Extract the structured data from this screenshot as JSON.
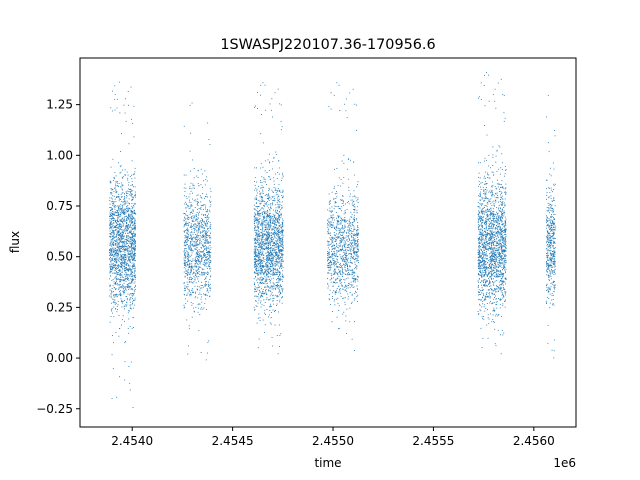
{
  "chart_data": {
    "type": "scatter",
    "title": "1SWASPJ220107.36-170956.6",
    "xlabel": "time",
    "ylabel": "flux",
    "x_offset_label": "1e6",
    "xlim": [
      2453740,
      2456210
    ],
    "ylim": [
      -0.34,
      1.48
    ],
    "grid": false,
    "legend": "none",
    "marker_color": "#1f77b4",
    "x_ticks": [
      {
        "value": 2454000,
        "label": "2.4540"
      },
      {
        "value": 2454500,
        "label": "2.4545"
      },
      {
        "value": 2455000,
        "label": "2.4550"
      },
      {
        "value": 2455500,
        "label": "2.4555"
      },
      {
        "value": 2456000,
        "label": "2.4560"
      }
    ],
    "y_ticks": [
      {
        "value": -0.25,
        "label": "−0.25"
      },
      {
        "value": 0.0,
        "label": "0.00"
      },
      {
        "value": 0.25,
        "label": "0.25"
      },
      {
        "value": 0.5,
        "label": "0.50"
      },
      {
        "value": 0.75,
        "label": "0.75"
      },
      {
        "value": 1.0,
        "label": "1.00"
      },
      {
        "value": 1.25,
        "label": "1.25"
      }
    ],
    "seasons": [
      {
        "x_start": 2453885,
        "x_end": 2454015,
        "center_flux": 0.57,
        "spread": 0.16,
        "flux_min": -0.27,
        "flux_max": 1.39,
        "density": "high"
      },
      {
        "x_start": 2454255,
        "x_end": 2454390,
        "center_flux": 0.55,
        "spread": 0.14,
        "flux_min": -0.01,
        "flux_max": 1.27,
        "density": "medium"
      },
      {
        "x_start": 2454605,
        "x_end": 2454750,
        "center_flux": 0.56,
        "spread": 0.15,
        "flux_min": 0.02,
        "flux_max": 1.37,
        "density": "high"
      },
      {
        "x_start": 2454970,
        "x_end": 2455125,
        "center_flux": 0.55,
        "spread": 0.14,
        "flux_min": 0.0,
        "flux_max": 1.37,
        "density": "medium"
      },
      {
        "x_start": 2455720,
        "x_end": 2455860,
        "center_flux": 0.56,
        "spread": 0.16,
        "flux_min": 0.02,
        "flux_max": 1.42,
        "density": "high"
      },
      {
        "x_start": 2456060,
        "x_end": 2456105,
        "center_flux": 0.55,
        "spread": 0.13,
        "flux_min": 0.0,
        "flux_max": 1.32,
        "density": "low"
      }
    ]
  }
}
